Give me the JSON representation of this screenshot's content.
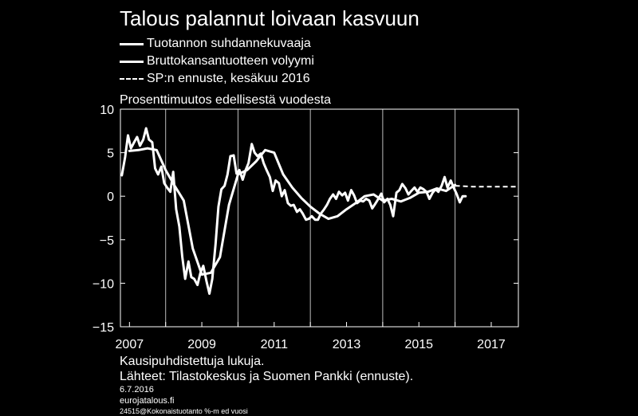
{
  "title": "Talous palannut loivaan kasvuun",
  "legend": [
    {
      "label": "Tuotannon suhdannekuvaaja",
      "style": "solid"
    },
    {
      "label": "Bruttokansantuotteen volyymi",
      "style": "solid"
    },
    {
      "label": "SP:n ennuste, kesäkuu 2016",
      "style": "dashed"
    }
  ],
  "footer": {
    "note": "Kausipuhdistettuja lukuja.",
    "sources": "Lähteet: Tilastokeskus ja Suomen Pankki (ennuste).",
    "date": "6.7.2016",
    "site": "eurojatalous.fi",
    "code": "24515@Kokonaistuotanto %-m ed vuosi"
  },
  "chart_data": {
    "type": "line",
    "title": "Talous palannut loivaan kasvuun",
    "ylabel": "Prosenttimuutos edellisestä vuodesta",
    "xlim": [
      2006.75,
      2017.75
    ],
    "ylim": [
      -15,
      10
    ],
    "yticks": [
      10,
      5,
      0,
      -5,
      -10,
      -15
    ],
    "ytick_labels": [
      "10",
      "5",
      "0",
      "−5",
      "−10",
      "−15"
    ],
    "xticks": [
      2007,
      2009,
      2011,
      2013,
      2015,
      2017
    ],
    "xtick_labels": [
      "2007",
      "2009",
      "2011",
      "2013",
      "2015",
      "2017"
    ],
    "grid": "vertical",
    "series": [
      {
        "name": "Tuotannon suhdannekuvaaja",
        "style": "solid",
        "color": "#ffffff",
        "x": [
          2006.79,
          2006.88,
          2006.96,
          2007.04,
          2007.13,
          2007.21,
          2007.29,
          2007.38,
          2007.46,
          2007.54,
          2007.63,
          2007.71,
          2007.79,
          2007.88,
          2007.96,
          2008.04,
          2008.13,
          2008.21,
          2008.29,
          2008.38,
          2008.46,
          2008.54,
          2008.63,
          2008.71,
          2008.79,
          2008.88,
          2008.96,
          2009.04,
          2009.13,
          2009.21,
          2009.29,
          2009.38,
          2009.46,
          2009.54,
          2009.63,
          2009.71,
          2009.79,
          2009.88,
          2009.96,
          2010.04,
          2010.13,
          2010.21,
          2010.29,
          2010.38,
          2010.46,
          2010.54,
          2010.63,
          2010.71,
          2010.79,
          2010.88,
          2010.96,
          2011.04,
          2011.13,
          2011.21,
          2011.29,
          2011.38,
          2011.46,
          2011.54,
          2011.63,
          2011.71,
          2011.79,
          2011.88,
          2011.96,
          2012.04,
          2012.13,
          2012.21,
          2012.29,
          2012.38,
          2012.46,
          2012.54,
          2012.63,
          2012.71,
          2012.79,
          2012.88,
          2012.96,
          2013.04,
          2013.13,
          2013.21,
          2013.29,
          2013.38,
          2013.46,
          2013.54,
          2013.63,
          2013.71,
          2013.79,
          2013.88,
          2013.96,
          2014.04,
          2014.13,
          2014.21,
          2014.29,
          2014.38,
          2014.46,
          2014.54,
          2014.63,
          2014.71,
          2014.79,
          2014.88,
          2014.96,
          2015.04,
          2015.13,
          2015.21,
          2015.29,
          2015.38,
          2015.46,
          2015.54,
          2015.63,
          2015.71,
          2015.79,
          2015.88,
          2015.96,
          2016.04,
          2016.13,
          2016.21,
          2016.29
        ],
        "y": [
          2.4,
          4.5,
          7.0,
          5.5,
          6.2,
          6.8,
          5.8,
          6.5,
          7.8,
          6.5,
          6.2,
          3.2,
          2.5,
          3.4,
          1.5,
          1.0,
          0.5,
          2.8,
          -1.5,
          -3.5,
          -7.0,
          -9.5,
          -7.5,
          -9.3,
          -9.5,
          -10.2,
          -8.8,
          -8.0,
          -9.8,
          -11.2,
          -9.5,
          -5.5,
          -1.2,
          0.8,
          1.2,
          2.5,
          4.6,
          4.7,
          2.6,
          3.0,
          1.9,
          3.0,
          3.8,
          6.0,
          5.0,
          4.6,
          4.9,
          3.8,
          3.0,
          2.2,
          0.6,
          1.8,
          1.5,
          0.0,
          0.7,
          -0.8,
          -1.1,
          -1.0,
          -1.8,
          -1.5,
          -2.0,
          -2.7,
          -2.6,
          -2.3,
          -2.7,
          -2.7,
          -2.0,
          -1.5,
          -1.0,
          -0.3,
          0.2,
          -0.3,
          0.5,
          0.1,
          0.4,
          -0.5,
          0.7,
          0.1,
          -0.8,
          -0.5,
          -0.6,
          -0.3,
          -0.5,
          -1.4,
          -0.9,
          -0.3,
          0.3,
          -0.7,
          -0.3,
          -1.0,
          -2.3,
          0.4,
          0.7,
          1.4,
          0.9,
          0.2,
          0.6,
          1.0,
          0.5,
          1.0,
          0.8,
          0.5,
          -0.3,
          0.4,
          0.8,
          0.5,
          1.2,
          2.2,
          1.0,
          1.8,
          1.0,
          0.3,
          -0.7,
          0.0,
          0.0
        ],
        "note": "last two points unused"
      },
      {
        "name": "Bruttokansantuotteen volyymi",
        "style": "solid",
        "color": "#ffffff",
        "x": [
          2007.0,
          2007.25,
          2007.5,
          2007.75,
          2008.0,
          2008.25,
          2008.5,
          2008.75,
          2009.0,
          2009.25,
          2009.5,
          2009.75,
          2010.0,
          2010.25,
          2010.5,
          2010.75,
          2011.0,
          2011.25,
          2011.5,
          2011.75,
          2012.0,
          2012.25,
          2012.5,
          2012.75,
          2013.0,
          2013.25,
          2013.5,
          2013.75,
          2014.0,
          2014.25,
          2014.5,
          2014.75,
          2015.0,
          2015.25,
          2015.5,
          2015.75,
          2016.0
        ],
        "y": [
          5.2,
          5.3,
          5.5,
          5.3,
          3.0,
          1.2,
          -0.5,
          -6.0,
          -9.0,
          -8.8,
          -7.0,
          -1.0,
          2.5,
          3.0,
          4.0,
          5.3,
          5.0,
          2.5,
          1.0,
          -0.2,
          -1.2,
          -2.0,
          -2.6,
          -2.3,
          -1.5,
          -0.8,
          0.0,
          0.2,
          -0.5,
          -0.3,
          -0.6,
          -0.2,
          0.4,
          0.5,
          0.9,
          0.6,
          1.3
        ]
      },
      {
        "name": "SP:n ennuste, kesäkuu 2016",
        "style": "dashed",
        "color": "#ffffff",
        "x": [
          2016.0,
          2016.5,
          2017.0,
          2017.5,
          2017.75
        ],
        "y": [
          1.2,
          1.1,
          1.1,
          1.1,
          1.1
        ]
      }
    ]
  }
}
